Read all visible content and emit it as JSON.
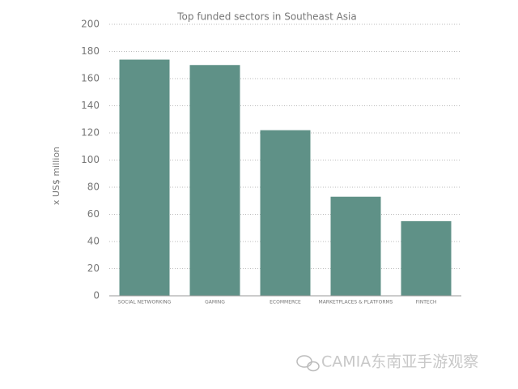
{
  "chart_data": {
    "type": "bar",
    "title": "Top funded sectors in Southeast Asia",
    "y_label": "x US$ million",
    "categories": [
      "SOCIAL NETWORKING",
      "GAMING",
      "ECOMMERCE",
      "MARKETPLACES & PLATFORMS",
      "FINTECH"
    ],
    "values": [
      174,
      170,
      122,
      73,
      55
    ],
    "color": "#5f9187",
    "ylim": [
      0,
      200
    ],
    "yticks": [
      0,
      20,
      40,
      60,
      80,
      100,
      120,
      140,
      160,
      180,
      200
    ],
    "grid": true
  },
  "watermark": "CAMIA东南亚手游观察"
}
